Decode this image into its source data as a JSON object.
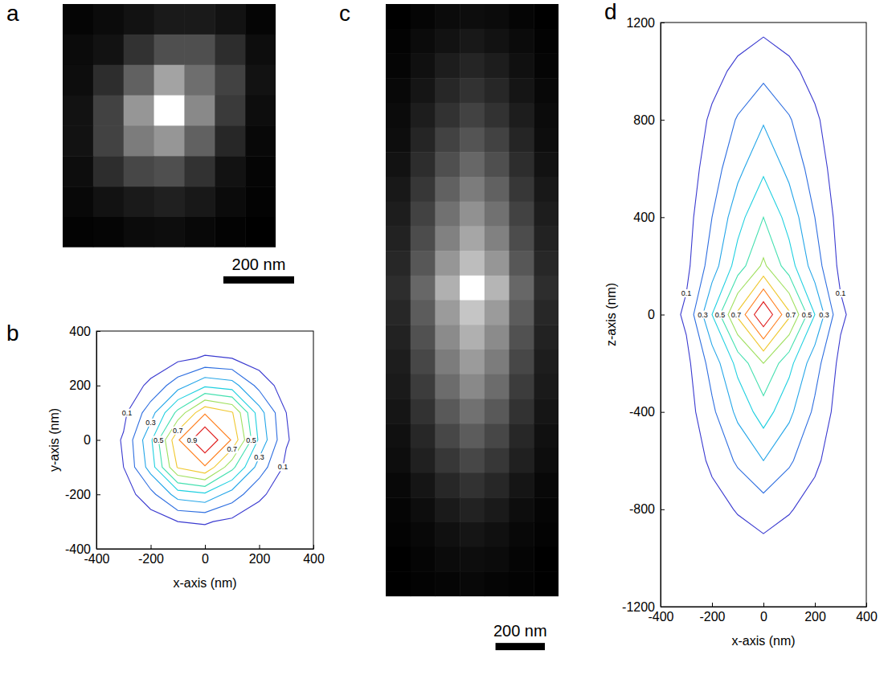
{
  "chart_data": [
    {
      "panel": "a",
      "type": "heatmap",
      "pixel_size": 86,
      "cells": [
        [
          0.05,
          0.07,
          0.1,
          0.13,
          0.13,
          0.1,
          0.05
        ],
        [
          0.07,
          0.1,
          0.22,
          0.33,
          0.33,
          0.2,
          0.08
        ],
        [
          0.08,
          0.2,
          0.4,
          0.65,
          0.45,
          0.28,
          0.1
        ],
        [
          0.1,
          0.28,
          0.6,
          1,
          0.55,
          0.25,
          0.08
        ],
        [
          0.1,
          0.28,
          0.5,
          0.6,
          0.4,
          0.18,
          0.06
        ],
        [
          0.08,
          0.2,
          0.3,
          0.33,
          0.22,
          0.1,
          0.05
        ],
        [
          0.06,
          0.1,
          0.13,
          0.15,
          0.12,
          0.07,
          0.04
        ],
        [
          0.04,
          0.05,
          0.07,
          0.08,
          0.06,
          0.04,
          0.03
        ]
      ],
      "scale_bar": {
        "length": 200,
        "label": "200 nm"
      }
    },
    {
      "panel": "b",
      "type": "contour",
      "x": [
        -400,
        -300,
        -200,
        -100,
        0,
        100,
        200,
        300,
        400
      ],
      "y": [
        -400,
        -300,
        -200,
        -100,
        0,
        100,
        200,
        300,
        400
      ],
      "z": [
        [
          0.0005,
          0.003,
          0.009,
          0.02,
          0.02,
          0.014,
          0.007,
          0.002,
          0.0003
        ],
        [
          0.003,
          0.015,
          0.046,
          0.1,
          0.11,
          0.077,
          0.034,
          0.011,
          0.002
        ],
        [
          0.009,
          0.046,
          0.167,
          0.345,
          0.38,
          0.255,
          0.123,
          0.034,
          0.007
        ],
        [
          0.02,
          0.1,
          0.345,
          0.71,
          0.79,
          0.53,
          0.255,
          0.077,
          0.014
        ],
        [
          0.02,
          0.11,
          0.38,
          0.79,
          1,
          0.79,
          0.38,
          0.11,
          0.02
        ],
        [
          0.014,
          0.077,
          0.255,
          0.53,
          0.79,
          0.71,
          0.345,
          0.1,
          0.02
        ],
        [
          0.007,
          0.034,
          0.123,
          0.255,
          0.38,
          0.345,
          0.167,
          0.046,
          0.009
        ],
        [
          0.002,
          0.011,
          0.034,
          0.077,
          0.11,
          0.1,
          0.046,
          0.015,
          0.003
        ],
        [
          0.0003,
          0.002,
          0.007,
          0.014,
          0.02,
          0.02,
          0.009,
          0.003,
          0.0005
        ]
      ],
      "levels": [
        0.1,
        0.2,
        0.3,
        0.4,
        0.5,
        0.6,
        0.7,
        0.8,
        0.9
      ],
      "colors": [
        "#3b3bd0",
        "#2f6fe0",
        "#25a6e8",
        "#20d0e0",
        "#45e0b0",
        "#a0e060",
        "#f0c830",
        "#ff8020",
        "#e02020"
      ],
      "contour_labels": [
        0.1,
        0.3,
        0.5,
        0.7,
        0.9
      ],
      "xlim": [
        -400,
        400
      ],
      "ylim": [
        -400,
        400
      ],
      "xticks": [
        -400,
        -200,
        0,
        200,
        400
      ],
      "yticks": [
        -400,
        -200,
        0,
        200,
        400
      ],
      "xlabel": "x-axis (nm)",
      "ylabel": "y-axis (nm)"
    },
    {
      "panel": "c",
      "type": "heatmap",
      "pixel_size": 100,
      "cells": [
        [
          0.03,
          0.05,
          0.07,
          0.08,
          0.07,
          0.05,
          0.03
        ],
        [
          0.04,
          0.07,
          0.1,
          0.12,
          0.1,
          0.07,
          0.04
        ],
        [
          0.05,
          0.09,
          0.14,
          0.17,
          0.14,
          0.09,
          0.05
        ],
        [
          0.06,
          0.11,
          0.18,
          0.22,
          0.18,
          0.11,
          0.06
        ],
        [
          0.07,
          0.14,
          0.22,
          0.28,
          0.22,
          0.14,
          0.07
        ],
        [
          0.08,
          0.17,
          0.28,
          0.35,
          0.28,
          0.17,
          0.08
        ],
        [
          0.1,
          0.2,
          0.33,
          0.42,
          0.33,
          0.2,
          0.1
        ],
        [
          0.12,
          0.24,
          0.4,
          0.5,
          0.4,
          0.24,
          0.12
        ],
        [
          0.14,
          0.28,
          0.46,
          0.58,
          0.46,
          0.28,
          0.14
        ],
        [
          0.16,
          0.32,
          0.52,
          0.66,
          0.52,
          0.32,
          0.16
        ],
        [
          0.18,
          0.36,
          0.6,
          0.75,
          0.6,
          0.36,
          0.18
        ],
        [
          0.2,
          0.42,
          0.7,
          1,
          0.72,
          0.42,
          0.2
        ],
        [
          0.18,
          0.38,
          0.62,
          0.78,
          0.62,
          0.38,
          0.18
        ],
        [
          0.16,
          0.34,
          0.56,
          0.7,
          0.56,
          0.34,
          0.16
        ],
        [
          0.14,
          0.3,
          0.5,
          0.62,
          0.5,
          0.3,
          0.14
        ],
        [
          0.13,
          0.26,
          0.44,
          0.55,
          0.44,
          0.26,
          0.13
        ],
        [
          0.11,
          0.22,
          0.37,
          0.46,
          0.37,
          0.22,
          0.11
        ],
        [
          0.09,
          0.18,
          0.3,
          0.38,
          0.3,
          0.18,
          0.09
        ],
        [
          0.08,
          0.15,
          0.24,
          0.3,
          0.24,
          0.15,
          0.08
        ],
        [
          0.06,
          0.11,
          0.18,
          0.22,
          0.18,
          0.11,
          0.06
        ],
        [
          0.05,
          0.08,
          0.13,
          0.16,
          0.13,
          0.08,
          0.05
        ],
        [
          0.04,
          0.06,
          0.09,
          0.11,
          0.09,
          0.06,
          0.04
        ],
        [
          0.03,
          0.05,
          0.07,
          0.08,
          0.07,
          0.05,
          0.03
        ],
        [
          0.03,
          0.04,
          0.05,
          0.06,
          0.05,
          0.04,
          0.03
        ]
      ],
      "scale_bar": {
        "length": 200,
        "label": "200 nm"
      }
    },
    {
      "panel": "d",
      "type": "contour",
      "x": [
        -400,
        -300,
        -200,
        -100,
        0,
        100,
        200,
        300,
        400
      ],
      "y": [
        -1200,
        -1000,
        -800,
        -600,
        -400,
        -200,
        0,
        200,
        400,
        600,
        800,
        1000,
        1200
      ],
      "z": [
        [
          0.0006,
          0.0024,
          0.008,
          0.0144,
          0.02,
          0.0144,
          0.008,
          0.0024,
          0.0006
        ],
        [
          0.0015,
          0.006,
          0.02,
          0.036,
          0.05,
          0.036,
          0.02,
          0.006,
          0.0015
        ],
        [
          0.0045,
          0.018,
          0.06,
          0.108,
          0.15,
          0.108,
          0.06,
          0.018,
          0.0045
        ],
        [
          0.009,
          0.036,
          0.12,
          0.216,
          0.3,
          0.216,
          0.12,
          0.036,
          0.009
        ],
        [
          0.0135,
          0.054,
          0.18,
          0.324,
          0.45,
          0.324,
          0.18,
          0.054,
          0.0135
        ],
        [
          0.018,
          0.072,
          0.24,
          0.432,
          0.6,
          0.432,
          0.24,
          0.072,
          0.018
        ],
        [
          0.03,
          0.12,
          0.4,
          0.72,
          1,
          0.72,
          0.4,
          0.12,
          0.03
        ],
        [
          0.0186,
          0.0744,
          0.248,
          0.4464,
          0.62,
          0.4464,
          0.248,
          0.0744,
          0.0186
        ],
        [
          0.015,
          0.06,
          0.2,
          0.36,
          0.5,
          0.36,
          0.2,
          0.06,
          0.015
        ],
        [
          0.0114,
          0.0456,
          0.152,
          0.2736,
          0.38,
          0.2736,
          0.152,
          0.0456,
          0.0114
        ],
        [
          0.0087,
          0.0348,
          0.116,
          0.2088,
          0.29,
          0.2088,
          0.116,
          0.0348,
          0.0087
        ],
        [
          0.0051,
          0.0204,
          0.068,
          0.1224,
          0.17,
          0.1224,
          0.068,
          0.0204,
          0.0051
        ],
        [
          0.0021,
          0.0084,
          0.028,
          0.0504,
          0.07,
          0.0504,
          0.028,
          0.0084,
          0.0021
        ]
      ],
      "levels": [
        0.1,
        0.2,
        0.3,
        0.4,
        0.5,
        0.6,
        0.7,
        0.8,
        0.9
      ],
      "colors": [
        "#3b3bd0",
        "#2f6fe0",
        "#25a6e8",
        "#20d0e0",
        "#45e0b0",
        "#a0e060",
        "#f0c830",
        "#ff8020",
        "#e02020"
      ],
      "contour_labels": [
        0.1,
        0.3,
        0.5,
        0.7
      ],
      "xlim": [
        -400,
        400
      ],
      "ylim": [
        -1200,
        1200
      ],
      "xticks": [
        -400,
        -200,
        0,
        200,
        400
      ],
      "yticks": [
        -1200,
        -800,
        -400,
        0,
        400,
        800,
        1200
      ],
      "xlabel": "x-axis (nm)",
      "ylabel": "z-axis (nm)"
    }
  ]
}
